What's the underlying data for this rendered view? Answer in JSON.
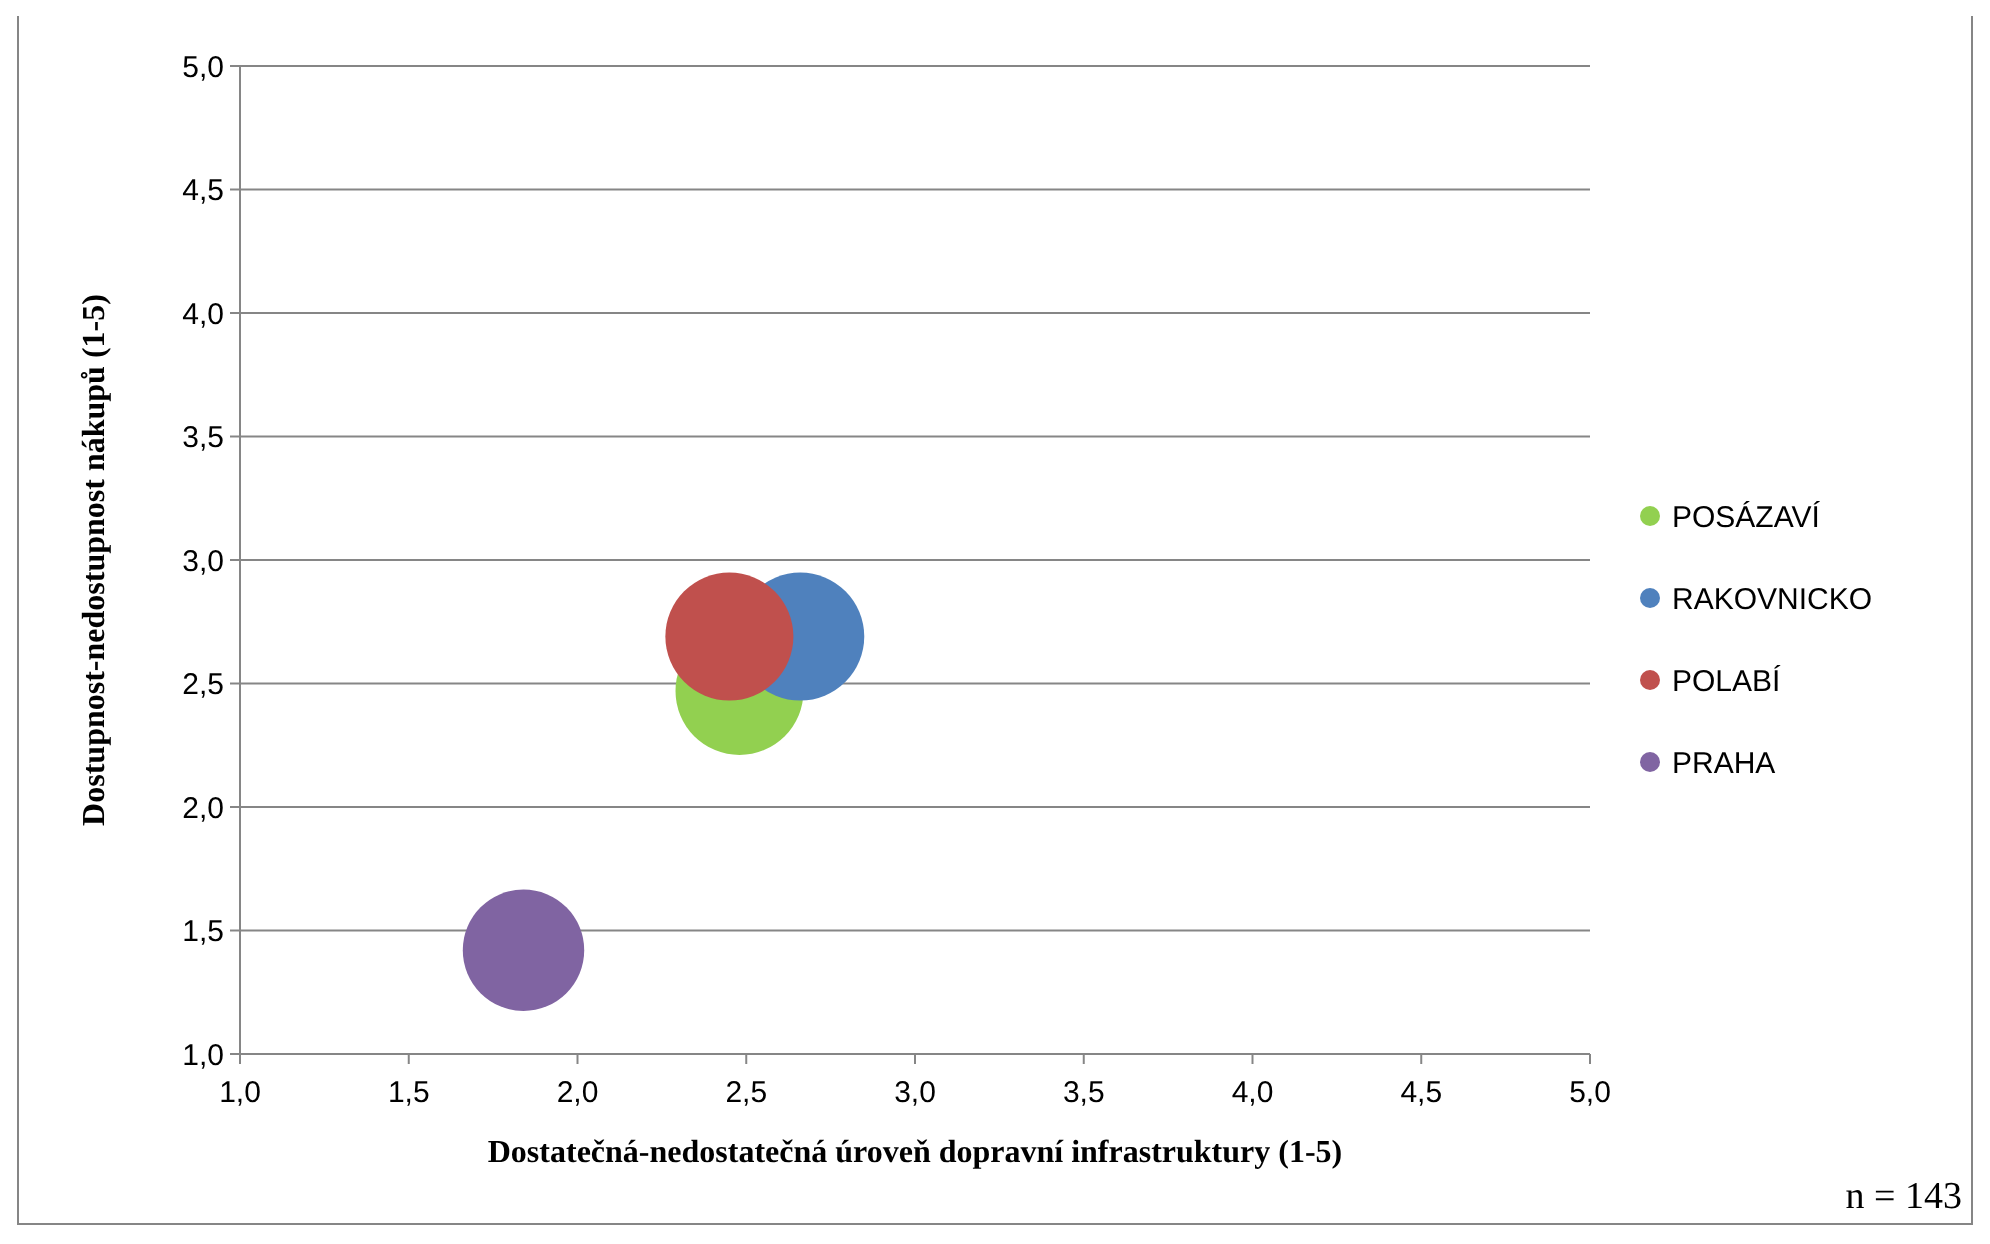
{
  "chart_data": {
    "type": "bubble",
    "xlabel": "Dostatečná-nedostatečná  úroveň dopravní infrastruktury  (1-5)",
    "ylabel": "Dostupnost-nedostupnost  nákupů  (1-5)",
    "xlim": [
      1,
      5
    ],
    "ylim": [
      1,
      5
    ],
    "xticks": [
      {
        "value": 1,
        "label": "1,0"
      },
      {
        "value": 1.5,
        "label": "1,5"
      },
      {
        "value": 2,
        "label": "2,0"
      },
      {
        "value": 2.5,
        "label": "2,5"
      },
      {
        "value": 3,
        "label": "3,0"
      },
      {
        "value": 3.5,
        "label": "3,5"
      },
      {
        "value": 4,
        "label": "4,0"
      },
      {
        "value": 4.5,
        "label": "4,5"
      },
      {
        "value": 5,
        "label": "5,0"
      }
    ],
    "yticks": [
      {
        "value": 1,
        "label": "1,0"
      },
      {
        "value": 1.5,
        "label": "1,5"
      },
      {
        "value": 2,
        "label": "2,0"
      },
      {
        "value": 2.5,
        "label": "2,5"
      },
      {
        "value": 3,
        "label": "3,0"
      },
      {
        "value": 3.5,
        "label": "3,5"
      },
      {
        "value": 4,
        "label": "4,0"
      },
      {
        "value": 4.5,
        "label": "4,5"
      },
      {
        "value": 5,
        "label": "5,0"
      }
    ],
    "grid": "y",
    "legend": "right",
    "annotations": [
      "n = 143"
    ],
    "series": [
      {
        "name": "POSÁZAVÍ",
        "color": "#92d050",
        "x": [
          2.48
        ],
        "values": [
          2.47
        ],
        "sizes": [
          1
        ]
      },
      {
        "name": "RAKOVNICKO",
        "color": "#4f81bd",
        "x": [
          2.66
        ],
        "values": [
          2.69
        ],
        "sizes": [
          1
        ]
      },
      {
        "name": "POLABÍ",
        "color": "#c0504d",
        "x": [
          2.45
        ],
        "values": [
          2.69
        ],
        "sizes": [
          1
        ]
      },
      {
        "name": "PRAHA",
        "color": "#8064a2",
        "x": [
          1.84
        ],
        "values": [
          1.42
        ],
        "sizes": [
          0.9
        ]
      }
    ]
  }
}
